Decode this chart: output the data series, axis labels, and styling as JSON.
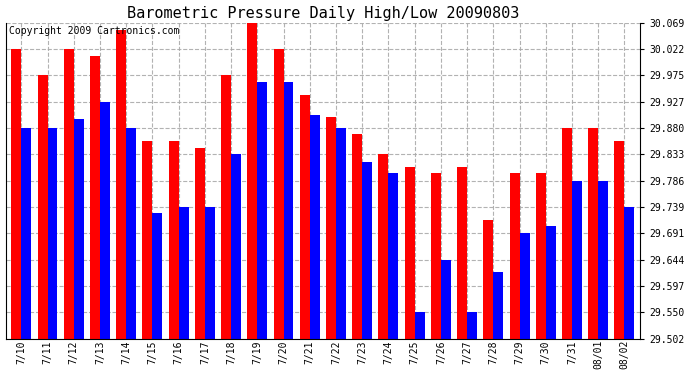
{
  "title": "Barometric Pressure Daily High/Low 20090803",
  "copyright": "Copyright 2009 Cartronics.com",
  "dates": [
    "7/10",
    "7/11",
    "7/12",
    "7/13",
    "7/14",
    "7/15",
    "7/16",
    "7/17",
    "7/18",
    "7/19",
    "7/20",
    "7/21",
    "7/22",
    "7/23",
    "7/24",
    "7/25",
    "7/26",
    "7/27",
    "7/28",
    "7/29",
    "7/30",
    "7/31",
    "08/01",
    "08/02"
  ],
  "highs": [
    30.022,
    29.975,
    30.022,
    30.01,
    30.057,
    29.857,
    29.857,
    29.845,
    29.975,
    30.069,
    30.022,
    29.94,
    29.9,
    29.87,
    29.833,
    29.81,
    29.8,
    29.81,
    29.715,
    29.8,
    29.8,
    29.88,
    29.88,
    29.857
  ],
  "lows": [
    29.88,
    29.88,
    29.897,
    29.927,
    29.88,
    29.727,
    29.739,
    29.739,
    29.833,
    29.963,
    29.963,
    29.904,
    29.88,
    29.82,
    29.8,
    29.55,
    29.644,
    29.55,
    29.621,
    29.691,
    29.704,
    29.786,
    29.786,
    29.739
  ],
  "ymin": 29.502,
  "ymax": 30.069,
  "yticks": [
    29.502,
    29.55,
    29.597,
    29.644,
    29.691,
    29.739,
    29.786,
    29.833,
    29.88,
    29.927,
    29.975,
    30.022,
    30.069
  ],
  "high_color": "#ff0000",
  "low_color": "#0000ff",
  "bg_color": "#ffffff",
  "grid_color": "#aaaaaa",
  "title_fontsize": 11,
  "copyright_fontsize": 7,
  "bar_width": 0.38,
  "figwidth": 6.9,
  "figheight": 3.75,
  "dpi": 100
}
